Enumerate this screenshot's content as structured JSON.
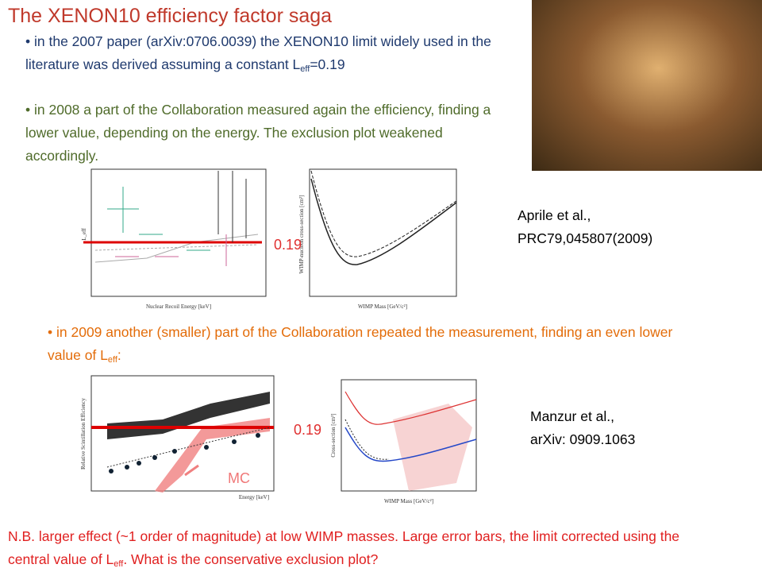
{
  "title": "The XENON10 efficiency factor saga",
  "bullets": [
    {
      "before": "in the 2007 paper (arXiv:0706.0039)  the XENON10 limit widely used in the literature was derived assuming a constant L",
      "sub": "eff",
      "after": "=0.19"
    },
    {
      "text": "in 2008 a part of the Collaboration measured again the efficiency, finding a lower value, depending on the energy. The exclusion plot weakened accordingly."
    },
    {
      "before": "in 2009 another (smaller) part of the Collaboration repeated the measurement, finding an even lower value of L",
      "sub": "eff",
      "after": ":"
    }
  ],
  "references": [
    {
      "line1": "Aprile et al.,",
      "line2": "PRC79,045807(2009)"
    },
    {
      "line1": "Manzur et al.,",
      "line2": "arXiv: 0909.1063"
    }
  ],
  "labels": {
    "leff_2008": "0.19",
    "leff_2009": "0.19",
    "mc": "MC"
  },
  "figures": [
    {
      "xlabel": "Nuclear Recoil Energy [keV]",
      "ylabel": "L_eff"
    },
    {
      "xlabel": "WIMP Mass [GeV/c²]",
      "ylabel": "WIMP-nucleon cross-section [cm²]"
    },
    {
      "xlabel": "Energy [keV]",
      "ylabel": "Relative Scintillation Efficiency"
    },
    {
      "xlabel": "WIMP Mass [GeV/c²]",
      "ylabel": "Cross-section [cm²]"
    }
  ],
  "note": {
    "before": "N.B. larger effect (~1 order of magnitude) at low WIMP masses. Large error bars, the limit corrected using the central value of L",
    "sub": "eff",
    "after": ". What is the conservative exclusion plot?"
  }
}
